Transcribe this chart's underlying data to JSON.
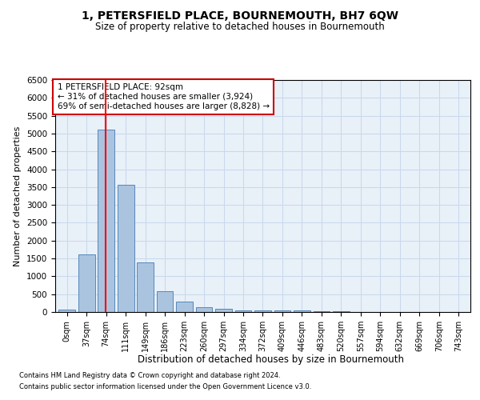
{
  "title": "1, PETERSFIELD PLACE, BOURNEMOUTH, BH7 6QW",
  "subtitle": "Size of property relative to detached houses in Bournemouth",
  "xlabel": "Distribution of detached houses by size in Bournemouth",
  "ylabel": "Number of detached properties",
  "footer_line1": "Contains HM Land Registry data © Crown copyright and database right 2024.",
  "footer_line2": "Contains public sector information licensed under the Open Government Licence v3.0.",
  "bar_labels": [
    "0sqm",
    "37sqm",
    "74sqm",
    "111sqm",
    "149sqm",
    "186sqm",
    "223sqm",
    "260sqm",
    "297sqm",
    "334sqm",
    "372sqm",
    "409sqm",
    "446sqm",
    "483sqm",
    "520sqm",
    "557sqm",
    "594sqm",
    "632sqm",
    "669sqm",
    "706sqm",
    "743sqm"
  ],
  "bar_values": [
    75,
    1625,
    5100,
    3575,
    1400,
    575,
    300,
    130,
    85,
    50,
    50,
    45,
    40,
    20,
    15,
    10,
    8,
    5,
    3,
    3,
    3
  ],
  "bar_color": "#aac4e0",
  "bar_edge_color": "#5588bb",
  "ylim": [
    0,
    6500
  ],
  "yticks": [
    0,
    500,
    1000,
    1500,
    2000,
    2500,
    3000,
    3500,
    4000,
    4500,
    5000,
    5500,
    6000,
    6500
  ],
  "property_value": 92,
  "red_line_bin_index": 2,
  "annotation_text_line1": "1 PETERSFIELD PLACE: 92sqm",
  "annotation_text_line2": "← 31% of detached houses are smaller (3,924)",
  "annotation_text_line3": "69% of semi-detached houses are larger (8,828) →",
  "annotation_box_color": "#ffffff",
  "annotation_box_edge_color": "#cc0000",
  "grid_color": "#c8d8ec",
  "background_color": "#e8f0f8"
}
